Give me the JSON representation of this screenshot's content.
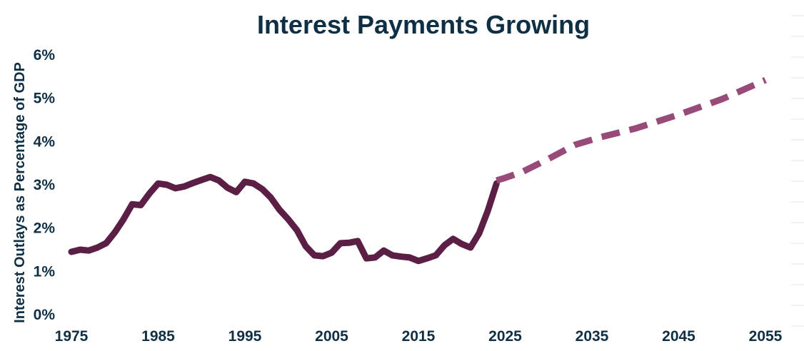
{
  "chart_data": {
    "type": "line",
    "title": "Interest Payments Growing",
    "xlabel": "",
    "ylabel": "Interest Outlays as Percentage of GDP",
    "xlim": [
      1975,
      2055
    ],
    "ylim": [
      0,
      6
    ],
    "x_ticks": [
      "1975",
      "1985",
      "1995",
      "2005",
      "2015",
      "2025",
      "2035",
      "2045",
      "2055"
    ],
    "y_ticks": [
      "0%",
      "1%",
      "2%",
      "3%",
      "4%",
      "5%",
      "6%"
    ],
    "grid": false,
    "legend": "none",
    "series": [
      {
        "style": "solid",
        "color": "#5b1f45",
        "x": [
          1975,
          1976,
          1977,
          1978,
          1979,
          1980,
          1981,
          1982,
          1983,
          1984,
          1985,
          1986,
          1987,
          1988,
          1989,
          1990,
          1991,
          1992,
          1993,
          1994,
          1995,
          1996,
          1997,
          1998,
          1999,
          2000,
          2001,
          2002,
          2003,
          2004,
          2005,
          2006,
          2007,
          2008,
          2009,
          2010,
          2011,
          2012,
          2013,
          2014,
          2015,
          2016,
          2017,
          2018,
          2019,
          2020,
          2021,
          2022,
          2023,
          2024
        ],
        "values": [
          1.45,
          1.5,
          1.48,
          1.55,
          1.65,
          1.9,
          2.2,
          2.55,
          2.53,
          2.8,
          3.03,
          3.0,
          2.92,
          2.96,
          3.04,
          3.11,
          3.18,
          3.1,
          2.93,
          2.83,
          3.07,
          3.03,
          2.9,
          2.7,
          2.42,
          2.2,
          1.95,
          1.58,
          1.37,
          1.35,
          1.43,
          1.65,
          1.66,
          1.7,
          1.3,
          1.32,
          1.48,
          1.37,
          1.34,
          1.32,
          1.24,
          1.3,
          1.37,
          1.6,
          1.75,
          1.63,
          1.55,
          1.88,
          2.4,
          3.03
        ]
      },
      {
        "style": "dashed",
        "color": "#984a79",
        "x": [
          2024,
          2025,
          2027,
          2030,
          2033,
          2036,
          2040,
          2045,
          2050,
          2055
        ],
        "values": [
          3.1,
          3.16,
          3.3,
          3.6,
          3.92,
          4.1,
          4.3,
          4.62,
          4.98,
          5.42
        ]
      }
    ]
  }
}
